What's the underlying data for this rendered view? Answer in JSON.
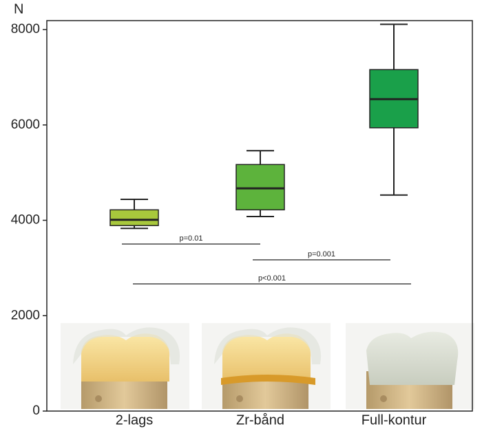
{
  "chart_data": {
    "type": "box",
    "ylabel": "N",
    "categories": [
      "2-lags",
      "Zr-bånd",
      "Full-kontur"
    ],
    "colors": [
      "#a8c83c",
      "#5db33c",
      "#1aa04a"
    ],
    "boxes": [
      {
        "min": 3830,
        "q1": 3890,
        "median": 4010,
        "q3": 4220,
        "max": 4440
      },
      {
        "min": 4080,
        "q1": 4220,
        "median": 4670,
        "q3": 5170,
        "max": 5460
      },
      {
        "min": 4530,
        "q1": 5940,
        "median": 6540,
        "q3": 7160,
        "max": 8110
      }
    ],
    "ylim": [
      0,
      8000
    ],
    "yticks": [
      0,
      2000,
      4000,
      6000,
      8000
    ],
    "annotations": [
      "p=0.01",
      "p=0.001",
      "p<0.001"
    ]
  }
}
